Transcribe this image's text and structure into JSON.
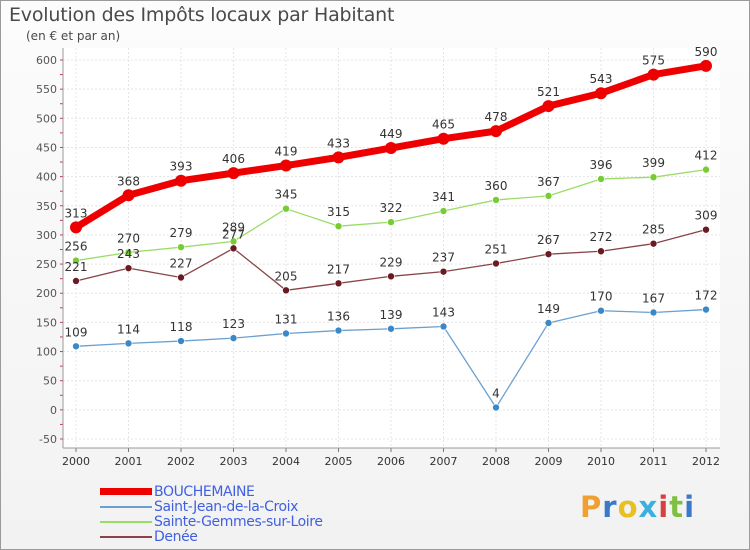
{
  "chart_data": {
    "type": "line",
    "title": "Evolution des Impôts locaux par Habitant",
    "subtitle": "(en € et par an)",
    "x": [
      "2000",
      "2001",
      "2002",
      "2003",
      "2004",
      "2005",
      "2006",
      "2007",
      "2008",
      "2009",
      "2010",
      "2011",
      "2012"
    ],
    "ylim": [
      -50,
      600
    ],
    "yticks": [
      "-50",
      "0",
      "50",
      "100",
      "150",
      "200",
      "250",
      "300",
      "350",
      "400",
      "450",
      "500",
      "550",
      "600"
    ],
    "grid": true,
    "legend_position": "bottom-left",
    "series": [
      {
        "name": "BOUCHEMAINE",
        "color": "#ee0000",
        "point_color": "#ee0000",
        "values": [
          313,
          368,
          393,
          406,
          419,
          433,
          449,
          465,
          478,
          521,
          543,
          575,
          590
        ]
      },
      {
        "name": "Saint-Jean-de-la-Croix",
        "color": "#6aa0d0",
        "point_color": "#3a88c8",
        "values": [
          109,
          114,
          118,
          123,
          131,
          136,
          139,
          143,
          4,
          149,
          170,
          167,
          172
        ]
      },
      {
        "name": "Sainte-Gemmes-sur-Loire",
        "color": "#99dd66",
        "point_color": "#77cc33",
        "values": [
          256,
          270,
          279,
          289,
          345,
          315,
          322,
          341,
          360,
          367,
          396,
          399,
          412
        ]
      },
      {
        "name": "Denée",
        "color": "#8a4448",
        "point_color": "#6a1a22",
        "values": [
          221,
          243,
          227,
          277,
          205,
          217,
          229,
          237,
          251,
          267,
          272,
          285,
          309
        ]
      }
    ]
  },
  "logo": {
    "letters": [
      "P",
      "r",
      "o",
      "x",
      "i",
      "t",
      "i"
    ]
  }
}
